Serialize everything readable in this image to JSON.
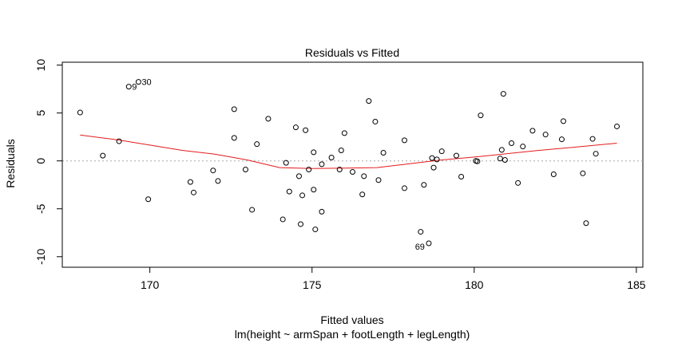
{
  "chart_data": {
    "type": "scatter",
    "title": "Residuals vs Fitted",
    "xlabel": "Fitted values",
    "subtitle": "lm(height ~ armSpan + footLength + legLength)",
    "ylabel": "Residuals",
    "xlim": [
      167.3,
      185.2
    ],
    "ylim": [
      -11.1,
      10.3
    ],
    "x_ticks": [
      170,
      175,
      180,
      185
    ],
    "y_ticks": [
      -10,
      -5,
      0,
      5,
      10
    ],
    "reference_line": {
      "y": 0,
      "style": "dotted",
      "color": "#aaaaaa"
    },
    "colors": {
      "points": "#000000",
      "smooth": "#e41a1c",
      "zero_line": "#aaaaaa"
    },
    "points": [
      {
        "x": 167.85,
        "y": 5.05
      },
      {
        "x": 168.55,
        "y": 0.55
      },
      {
        "x": 169.05,
        "y": 2.05
      },
      {
        "x": 169.35,
        "y": 7.75,
        "label": "9"
      },
      {
        "x": 169.65,
        "y": 8.25,
        "label": "30"
      },
      {
        "x": 169.95,
        "y": -4.0
      },
      {
        "x": 171.25,
        "y": -2.2
      },
      {
        "x": 171.35,
        "y": -3.3
      },
      {
        "x": 171.95,
        "y": -1.0
      },
      {
        "x": 172.1,
        "y": -2.1
      },
      {
        "x": 172.6,
        "y": 5.4
      },
      {
        "x": 172.6,
        "y": 2.4
      },
      {
        "x": 172.95,
        "y": -0.9
      },
      {
        "x": 173.15,
        "y": -5.1
      },
      {
        "x": 173.3,
        "y": 1.75
      },
      {
        "x": 173.65,
        "y": 4.4
      },
      {
        "x": 174.1,
        "y": -6.1
      },
      {
        "x": 174.2,
        "y": -0.2
      },
      {
        "x": 174.3,
        "y": -3.2
      },
      {
        "x": 174.5,
        "y": 3.5
      },
      {
        "x": 174.6,
        "y": -1.6
      },
      {
        "x": 174.65,
        "y": -6.6
      },
      {
        "x": 174.7,
        "y": -3.6
      },
      {
        "x": 174.8,
        "y": 3.2
      },
      {
        "x": 174.9,
        "y": -0.9
      },
      {
        "x": 175.05,
        "y": -3.0
      },
      {
        "x": 175.05,
        "y": 0.9
      },
      {
        "x": 175.1,
        "y": -7.15
      },
      {
        "x": 175.3,
        "y": -5.3
      },
      {
        "x": 175.3,
        "y": -0.35
      },
      {
        "x": 175.6,
        "y": 0.35
      },
      {
        "x": 175.85,
        "y": -0.9
      },
      {
        "x": 175.9,
        "y": 1.1
      },
      {
        "x": 176.0,
        "y": 2.9
      },
      {
        "x": 176.25,
        "y": -1.15
      },
      {
        "x": 176.55,
        "y": -3.5
      },
      {
        "x": 176.6,
        "y": -1.6
      },
      {
        "x": 176.75,
        "y": 6.25
      },
      {
        "x": 176.95,
        "y": 4.1
      },
      {
        "x": 177.05,
        "y": -2.0
      },
      {
        "x": 177.2,
        "y": 0.85
      },
      {
        "x": 177.85,
        "y": 2.15
      },
      {
        "x": 177.85,
        "y": -2.85
      },
      {
        "x": 178.35,
        "y": -7.4
      },
      {
        "x": 178.45,
        "y": -2.5
      },
      {
        "x": 178.6,
        "y": -8.6,
        "label": "69"
      },
      {
        "x": 178.7,
        "y": 0.3
      },
      {
        "x": 178.75,
        "y": -0.7
      },
      {
        "x": 178.85,
        "y": 0.15
      },
      {
        "x": 179.0,
        "y": 1.0
      },
      {
        "x": 179.45,
        "y": 0.55
      },
      {
        "x": 179.6,
        "y": -1.65
      },
      {
        "x": 180.05,
        "y": 0.0
      },
      {
        "x": 180.1,
        "y": -0.05
      },
      {
        "x": 180.2,
        "y": 4.75
      },
      {
        "x": 180.8,
        "y": 0.25
      },
      {
        "x": 180.85,
        "y": 1.15
      },
      {
        "x": 180.9,
        "y": 7.0
      },
      {
        "x": 180.95,
        "y": 0.1
      },
      {
        "x": 181.15,
        "y": 1.85
      },
      {
        "x": 181.35,
        "y": -2.3
      },
      {
        "x": 181.5,
        "y": 1.5
      },
      {
        "x": 181.8,
        "y": 3.15
      },
      {
        "x": 182.2,
        "y": 2.75
      },
      {
        "x": 182.45,
        "y": -1.4
      },
      {
        "x": 182.7,
        "y": 2.25
      },
      {
        "x": 182.75,
        "y": 4.15
      },
      {
        "x": 183.35,
        "y": -1.3
      },
      {
        "x": 183.45,
        "y": -6.5
      },
      {
        "x": 183.65,
        "y": 2.3
      },
      {
        "x": 183.75,
        "y": 0.75
      },
      {
        "x": 184.4,
        "y": 3.6
      }
    ],
    "smooth": [
      {
        "x": 167.85,
        "y": 2.7
      },
      {
        "x": 169.0,
        "y": 2.2
      },
      {
        "x": 170.0,
        "y": 1.65
      },
      {
        "x": 171.0,
        "y": 1.1
      },
      {
        "x": 172.0,
        "y": 0.7
      },
      {
        "x": 173.0,
        "y": 0.1
      },
      {
        "x": 174.0,
        "y": -0.7
      },
      {
        "x": 175.0,
        "y": -0.8
      },
      {
        "x": 176.0,
        "y": -0.75
      },
      {
        "x": 177.0,
        "y": -0.7
      },
      {
        "x": 178.0,
        "y": -0.3
      },
      {
        "x": 179.0,
        "y": 0.1
      },
      {
        "x": 180.0,
        "y": 0.4
      },
      {
        "x": 181.0,
        "y": 0.75
      },
      {
        "x": 182.0,
        "y": 1.1
      },
      {
        "x": 183.0,
        "y": 1.4
      },
      {
        "x": 184.4,
        "y": 1.85
      }
    ]
  }
}
